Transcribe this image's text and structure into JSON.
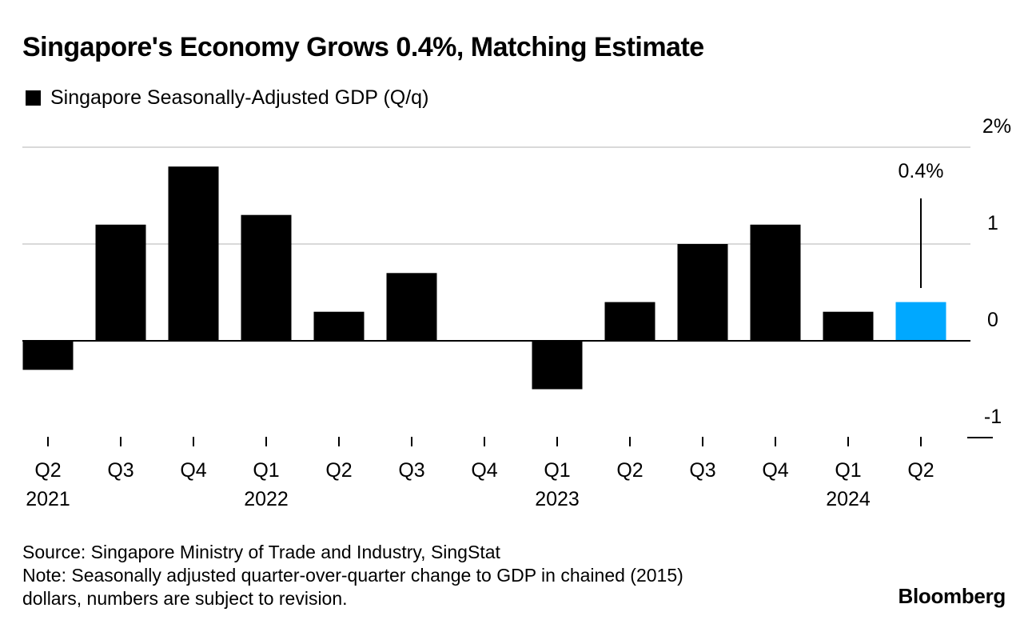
{
  "title": "Singapore's Economy Grows 0.4%, Matching Estimate",
  "legend": {
    "label": "Singapore Seasonally-Adjusted GDP (Q/q)",
    "color": "#000000"
  },
  "chart_data": {
    "type": "bar",
    "title": "Singapore's Economy Grows 0.4%, Matching Estimate",
    "series": [
      {
        "name": "Singapore Seasonally-Adjusted GDP (Q/q)",
        "color": "#000000"
      }
    ],
    "categories": [
      "Q2",
      "Q3",
      "Q4",
      "Q1",
      "Q2",
      "Q3",
      "Q4",
      "Q1",
      "Q2",
      "Q3",
      "Q4",
      "Q1",
      "Q2"
    ],
    "year_labels": [
      "2021",
      "",
      "",
      "2022",
      "",
      "",
      "",
      "2023",
      "",
      "",
      "",
      "2024",
      ""
    ],
    "values": [
      -0.3,
      1.2,
      1.8,
      1.3,
      0.3,
      0.7,
      0.0,
      -0.5,
      0.4,
      1.0,
      1.2,
      0.3,
      0.4
    ],
    "highlight_index": 12,
    "highlight_color": "#00a8ff",
    "bar_color": "#000000",
    "annotation": {
      "index": 12,
      "text": "0.4%"
    },
    "ylim": [
      -1,
      2
    ],
    "yticks": [
      {
        "value": 2,
        "label": "2%"
      },
      {
        "value": 1,
        "label": "1"
      },
      {
        "value": 0,
        "label": "0"
      },
      {
        "value": -1,
        "label": "-1"
      }
    ],
    "grid": true,
    "xlabel": "",
    "ylabel": ""
  },
  "source": "Source: Singapore Ministry of Trade and Industry, SingStat",
  "note_line1": "Note: Seasonally adjusted quarter-over-quarter change to GDP in chained (2015)",
  "note_line2": "dollars, numbers are subject to revision.",
  "brand": "Bloomberg"
}
